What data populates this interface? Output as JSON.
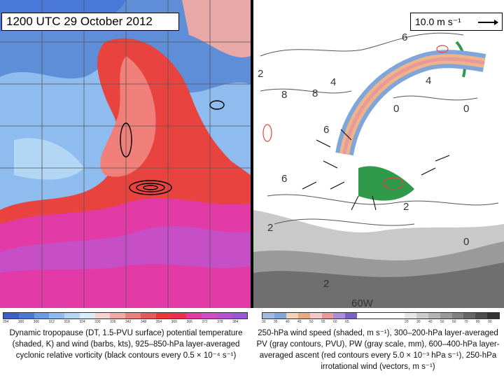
{
  "header": {
    "title": "1200 UTC 29 October 2012",
    "reference_vector_label": "10.0 m s⁻¹"
  },
  "left_panel": {
    "colorbar_ticks": [
      "294",
      "300",
      "306",
      "312",
      "318",
      "324",
      "330",
      "336",
      "342",
      "348",
      "354",
      "360",
      "366",
      "372",
      "378",
      "384"
    ],
    "colorbar_colors": [
      "#3b5fc6",
      "#4a78d8",
      "#6b9be6",
      "#8fbcef",
      "#b3d6f5",
      "#d9ecfa",
      "#f4d3cf",
      "#f2a9a3",
      "#ec7f7a",
      "#e85a5a",
      "#e83a3a",
      "#e8324f",
      "#e43aa0",
      "#d24bc4",
      "#b94fd2",
      "#9b55d8"
    ],
    "caption": "Dynamic tropopause (DT, 1.5-PVU surface) potential temperature (shaded, K) and wind (barbs, kts), 925–850-hPa layer-averaged cyclonic relative vorticity (black contours every 0.5 × 10⁻⁴ s⁻¹)"
  },
  "right_panel": {
    "colorbar_ticks": [
      "30",
      "35",
      "40",
      "45",
      "50",
      "55",
      "60",
      "65",
      "",
      "",
      "",
      "",
      "20",
      "30",
      "40",
      "50",
      "60",
      "70",
      "80",
      "90"
    ],
    "colorbar_colors": [
      "#9fb9e0",
      "#7fa5d9",
      "#f2d3b3",
      "#e9a97f",
      "#f4c8c8",
      "#e89a9a",
      "#a98dd8",
      "#7b5fc6",
      "#ffffff",
      "#ffffff",
      "#ffffff",
      "#ffffff",
      "#e6e6e6",
      "#cccccc",
      "#b3b3b3",
      "#999999",
      "#808080",
      "#666666",
      "#4d4d4d",
      "#333333"
    ],
    "caption": "250-hPa wind speed (shaded, m s⁻¹), 300–200-hPa layer-averaged PV (gray contours, PVU), PW (gray scale, mm), 600–400-hPa layer-averaged ascent (red contours every 5.0 × 10⁻³ hPa s⁻¹), 250-hPa irrotational wind (vectors, m s⁻¹)",
    "map_labels": [
      "6",
      "4",
      "8",
      "8",
      "4",
      "2",
      "0",
      "6",
      "0",
      "2",
      "2",
      "6",
      "0",
      "2",
      "60W"
    ]
  },
  "colors": {
    "ocean_left": "#e8408a",
    "trough_blue": "#5f8ed8",
    "ridge_red": "#e8433f",
    "map_bg_right": "#ffffff",
    "jet_orange": "#efb38a",
    "pw_gray": "#9a9a9a",
    "pw_green": "#2f9a4a"
  }
}
